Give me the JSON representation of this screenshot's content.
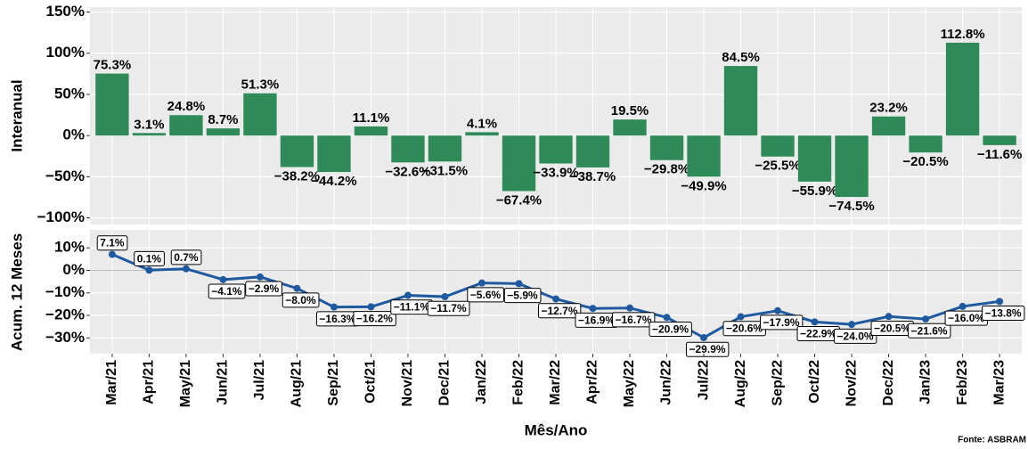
{
  "chart_data": [
    {
      "type": "bar",
      "y_label": "Interanual",
      "color": "#2e8b57",
      "grid": true,
      "values": [
        75.3,
        3.1,
        24.8,
        8.7,
        51.3,
        -38.2,
        -44.2,
        11.1,
        -32.6,
        -31.5,
        4.1,
        -67.4,
        -33.9,
        -38.7,
        19.5,
        -29.8,
        -49.9,
        84.5,
        -25.5,
        -55.9,
        -74.5,
        23.2,
        -20.5,
        112.8,
        -11.6
      ],
      "value_labels": [
        "75.3%",
        "3.1%",
        "24.8%",
        "8.7%",
        "51.3%",
        "−38.2%",
        "−44.2%",
        "11.1%",
        "−32.6%",
        "−31.5%",
        "4.1%",
        "−67.4%",
        "−33.9%",
        "−38.7%",
        "19.5%",
        "−29.8%",
        "−49.9%",
        "84.5%",
        "−25.5%",
        "−55.9%",
        "−74.5%",
        "23.2%",
        "−20.5%",
        "112.8%",
        "−11.6%"
      ],
      "ylim": [
        -108,
        156
      ],
      "yticks": [
        {
          "value": -100,
          "label": "−100%"
        },
        {
          "value": -50,
          "label": "−50%"
        },
        {
          "value": 0,
          "label": "0%"
        },
        {
          "value": 50,
          "label": "50%"
        },
        {
          "value": 100,
          "label": "100%"
        },
        {
          "value": 150,
          "label": "150%"
        }
      ]
    },
    {
      "type": "line",
      "y_label": "Acum. 12 Meses",
      "x_label": "Mês/Ano",
      "color": "#1f5aa0",
      "grid": true,
      "categories": [
        "Mar/21",
        "Apr/21",
        "May/21",
        "Jun/21",
        "Jul/21",
        "Aug/21",
        "Sep/21",
        "Oct/21",
        "Nov/21",
        "Dec/21",
        "Jan/22",
        "Feb/22",
        "Mar/22",
        "Apr/22",
        "May/22",
        "Jun/22",
        "Jul/22",
        "Aug/22",
        "Sep/22",
        "Oct/22",
        "Nov/22",
        "Dec/22",
        "Jan/23",
        "Feb/23",
        "Mar/23"
      ],
      "values": [
        7.1,
        0.1,
        0.7,
        -4.1,
        -2.9,
        -8.0,
        -16.3,
        -16.2,
        -11.1,
        -11.7,
        -5.6,
        -5.9,
        -12.7,
        -16.9,
        -16.7,
        -20.9,
        -29.9,
        -20.6,
        -17.9,
        -22.9,
        -24.0,
        -20.5,
        -21.6,
        -16.0,
        -13.8
      ],
      "value_labels": [
        "7.1%",
        "0.1%",
        "0.7%",
        "−4.1%",
        "−2.9%",
        "−8.0%",
        "−16.3%",
        "−16.2%",
        "−11.1%",
        "−11.7%",
        "−5.6%",
        "−5.9%",
        "−12.7%",
        "−16.9%",
        "−16.7%",
        "−20.9%",
        "−29.9%",
        "−20.6%",
        "−17.9%",
        "−22.9%",
        "−24.0%",
        "−20.5%",
        "−21.6%",
        "−16.0%",
        "−13.8%"
      ],
      "ylim": [
        -37,
        18
      ],
      "yticks": [
        {
          "value": -30,
          "label": "−30%"
        },
        {
          "value": -20,
          "label": "−20%"
        },
        {
          "value": -10,
          "label": "−10%"
        },
        {
          "value": 0,
          "label": "0%"
        },
        {
          "value": 10,
          "label": "10%"
        }
      ],
      "source": "Fonte: ASBRAM"
    }
  ]
}
